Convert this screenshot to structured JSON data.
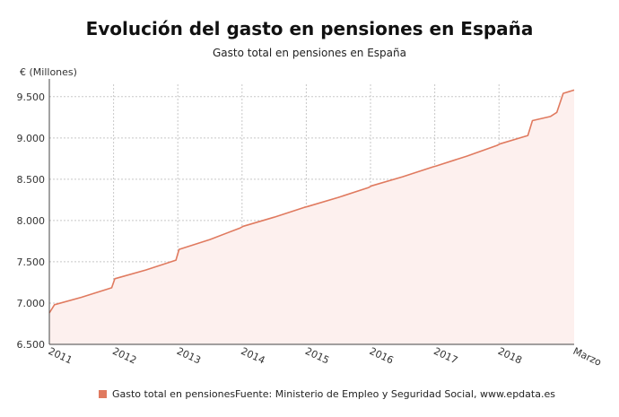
{
  "chart_data": {
    "type": "area",
    "title": "Evolución del gasto en pensiones en España",
    "subtitle": "Gasto total en pensiones en España",
    "ylabel": "€ (Millones)",
    "xlabel": "",
    "ylim": [
      6500,
      9650
    ],
    "xlim": [
      2011.0,
      2019.17
    ],
    "yticks": [
      6500,
      7000,
      7500,
      8000,
      8500,
      9000,
      9500
    ],
    "ytick_labels": [
      "6.500",
      "7.000",
      "7.500",
      "8.000",
      "8.500",
      "9.000",
      "9.500"
    ],
    "xticks": [
      2011,
      2012,
      2013,
      2014,
      2015,
      2016,
      2017,
      2018,
      2019.17
    ],
    "xtick_labels": [
      "2011",
      "2012",
      "2013",
      "2014",
      "2015",
      "2016",
      "2017",
      "2018",
      "Marzo"
    ],
    "grid": true,
    "legend_position": "bottom-left",
    "series": [
      {
        "name": "Gasto total en pensiones",
        "color": "#e07a5f",
        "fill": "#fdf0ee",
        "x": [
          2011.0,
          2011.08,
          2011.5,
          2011.97,
          2012.02,
          2012.5,
          2012.97,
          2013.02,
          2013.5,
          2013.97,
          2014.02,
          2014.5,
          2014.97,
          2015.02,
          2015.5,
          2015.97,
          2016.02,
          2016.5,
          2016.97,
          2017.02,
          2017.5,
          2017.97,
          2018.02,
          2018.45,
          2018.52,
          2018.8,
          2018.9,
          2019.0,
          2019.17
        ],
        "y": [
          6880,
          6980,
          7070,
          7185,
          7295,
          7400,
          7520,
          7650,
          7770,
          7910,
          7930,
          8040,
          8160,
          8170,
          8280,
          8400,
          8420,
          8530,
          8650,
          8660,
          8780,
          8910,
          8930,
          9030,
          9210,
          9260,
          9310,
          9540,
          9580
        ]
      }
    ]
  },
  "footer": {
    "source": "Fuente: Ministerio de Empleo y Seguridad Social, www.epdata.es"
  }
}
